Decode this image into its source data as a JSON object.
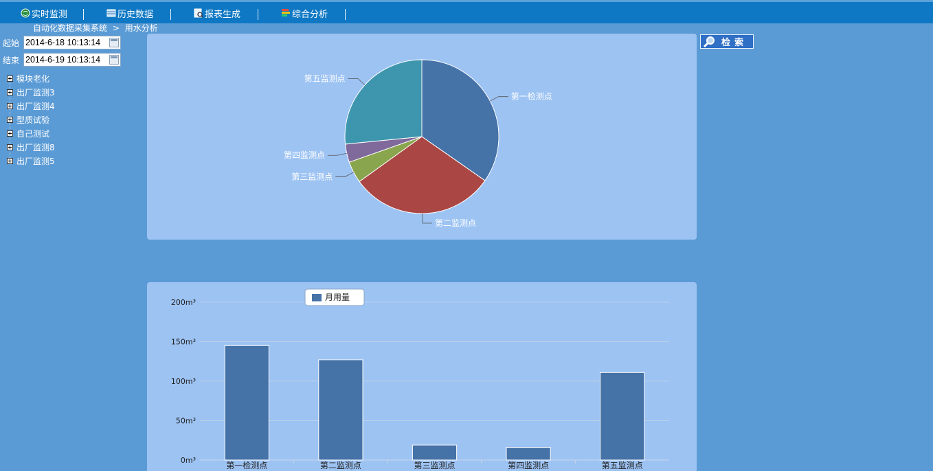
{
  "nav": {
    "items": [
      {
        "label": "实时监测",
        "icon": "globe-icon"
      },
      {
        "label": "历史数据",
        "icon": "database-icon"
      },
      {
        "label": "报表生成",
        "icon": "report-icon"
      },
      {
        "label": "综合分析",
        "icon": "analysis-icon"
      }
    ]
  },
  "breadcrumb": {
    "root": "自动化数据采集系统",
    "sep": ">",
    "current": "用水分析"
  },
  "filters": {
    "start_label": "起始",
    "start_value": "2014-6-18 10:13:14",
    "end_label": "结束",
    "end_value": "2014-6-19 10:13:14"
  },
  "search": {
    "label": "检索"
  },
  "tree": {
    "items": [
      "模块老化",
      "出厂监测3",
      "出厂监测4",
      "型质试验",
      "自己测试",
      "出厂监测8",
      "出厂监测5"
    ]
  },
  "colors": {
    "s1": "#4572a7",
    "s2": "#aa4643",
    "s3": "#89a54e",
    "s4": "#80699b",
    "s5": "#3d96ae"
  },
  "chart_data": [
    {
      "type": "pie",
      "labels": [
        "第一检测点",
        "第二监测点",
        "第三监测点",
        "第四监测点",
        "第五监测点"
      ],
      "values": [
        145,
        127,
        19,
        16,
        111
      ]
    },
    {
      "type": "bar",
      "categories": [
        "第一检测点",
        "第二监测点",
        "第三监测点",
        "第四监测点",
        "第五监测点"
      ],
      "series": [
        {
          "name": "月用量",
          "values": [
            145,
            127,
            19,
            16,
            111
          ]
        }
      ],
      "ylim": [
        0,
        200
      ],
      "yticks": [
        "0m³",
        "50m³",
        "100m³",
        "150m³",
        "200m³"
      ],
      "legend": "top-center",
      "grid": true
    }
  ]
}
